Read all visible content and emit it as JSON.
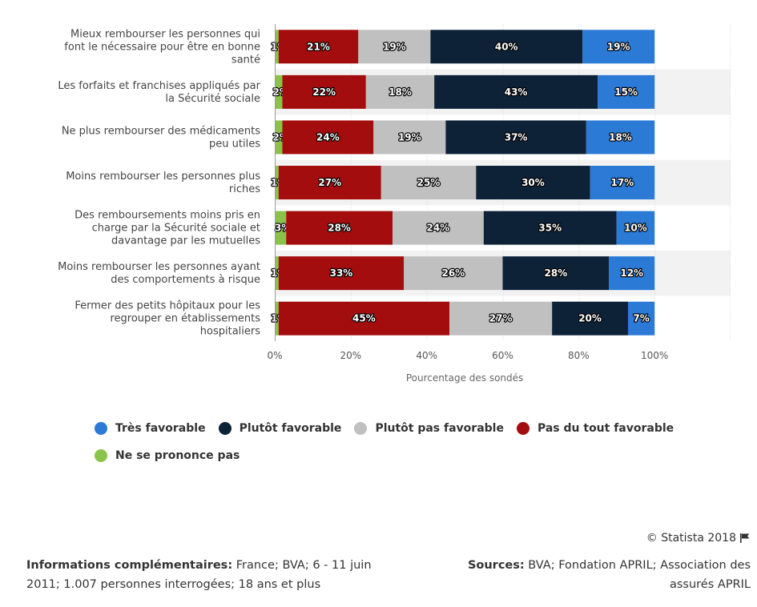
{
  "chart_data": {
    "type": "bar",
    "orientation": "horizontal",
    "stacked": true,
    "categories": [
      [
        "Mieux rembourser les personnes qui",
        "font le nécessaire pour être en bonne",
        "santé"
      ],
      [
        "Les forfaits et franchises appliqués par",
        "la Sécurité sociale"
      ],
      [
        "Ne plus rembourser des médicaments",
        "peu utiles"
      ],
      [
        "Moins rembourser les personnes plus",
        "riches"
      ],
      [
        "Des remboursements moins pris en",
        "charge par la Sécurité sociale et",
        "davantage par les mutuelles"
      ],
      [
        "Moins rembourser les personnes ayant",
        "des comportements à risque"
      ],
      [
        "Fermer des petits hôpitaux pour les",
        "regrouper en établissements",
        "hospitaliers"
      ]
    ],
    "series": [
      {
        "name": "Ne se prononce pas",
        "color": "#8bc34a",
        "values": [
          1,
          2,
          2,
          1,
          3,
          1,
          1
        ],
        "labels": [
          "1%",
          "2%",
          "2%",
          "1%",
          "3%",
          "1%",
          "1%"
        ]
      },
      {
        "name": "Pas du tout favorable",
        "color": "#a30d0d",
        "values": [
          21,
          22,
          24,
          27,
          28,
          33,
          45
        ],
        "labels": [
          "21%",
          "22%",
          "24%",
          "27%",
          "28%",
          "33%",
          "45%"
        ]
      },
      {
        "name": "Plutôt pas favorable",
        "color": "#c0c0c0",
        "values": [
          19,
          18,
          19,
          25,
          24,
          26,
          27
        ],
        "labels": [
          "19%",
          "18%",
          "19%",
          "25%",
          "24%",
          "26%",
          "27%"
        ]
      },
      {
        "name": "Plutôt favorable",
        "color": "#0d2137",
        "values": [
          40,
          43,
          37,
          30,
          35,
          28,
          20
        ],
        "labels": [
          "40%",
          "43%",
          "37%",
          "30%",
          "35%",
          "28%",
          "20%"
        ]
      },
      {
        "name": "Très favorable",
        "color": "#2a7ad6",
        "values": [
          19,
          15,
          18,
          17,
          10,
          12,
          7
        ],
        "labels": [
          "19%",
          "15%",
          "18%",
          "17%",
          "10%",
          "12%",
          "7%"
        ]
      }
    ],
    "xlim": [
      0,
      120
    ],
    "xticks": [
      0,
      20,
      40,
      60,
      80,
      100
    ],
    "xtick_labels": [
      "0%",
      "20%",
      "40%",
      "60%",
      "80%",
      "100%"
    ],
    "xlabel": "Pourcentage des sondés",
    "ylabel": "",
    "grid": "vertical",
    "legend_order": [
      "Très favorable",
      "Plutôt favorable",
      "Plutôt pas favorable",
      "Pas du tout favorable",
      "Ne se prononce pas"
    ],
    "legend_position": "bottom"
  },
  "footer": {
    "copyright": "© Statista 2018",
    "info_label": "Informations complémentaires:",
    "info_text": " France; BVA; 6 - 11 juin 2011; 1.007 personnes interrogées; 18 ans et plus",
    "sources_label": "Sources:",
    "sources_text": " BVA; Fondation APRIL; Association des assurés APRIL"
  }
}
